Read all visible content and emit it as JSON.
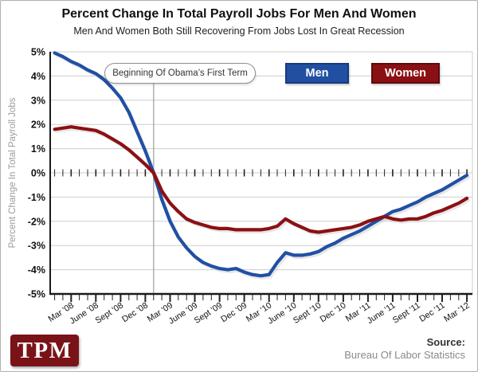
{
  "header": {
    "title": "Percent Change In Total Payroll Jobs For Men And Women",
    "subtitle": "Men And Women Both Still Recovering From Jobs Lost In Great Recession"
  },
  "annotation": {
    "label": "Beginning Of Obama’s First Term"
  },
  "legend": {
    "men": {
      "label": "Men",
      "fill": "#2150a3",
      "border": "#17397d"
    },
    "women": {
      "label": "Women",
      "fill": "#8b1014",
      "border": "#5c0b0e"
    }
  },
  "chart_data": {
    "type": "line",
    "title": "Percent Change In Total Payroll Jobs For Men And Women",
    "subtitle": "Men And Women Both Still Recovering From Jobs Lost In Great Recession",
    "ylabel": "Percent Change In Total Payroll Jobs",
    "ylim": [
      -5,
      5
    ],
    "grid": true,
    "y_tick_labels": [
      "5%",
      "4%",
      "3%",
      "2%",
      "1%",
      "0%",
      "-1%",
      "-2%",
      "-3%",
      "-4%",
      "-5%"
    ],
    "x_start": "Jan 2008",
    "x_end": "Mar 2012",
    "x_interval": "monthly",
    "x_tick_labels": [
      "Mar '08",
      "June '08",
      "Sept '08",
      "Dec '08",
      "Mar '09",
      "June '09",
      "Sept '09",
      "Dec '09",
      "Mar '10",
      "June '10",
      "Sept '10",
      "Dec '10",
      "Mar '11",
      "June '11",
      "Sept '11",
      "Dec '11",
      "Mar '12"
    ],
    "annotation": {
      "text": "Beginning Of Obama’s First Term",
      "x": "Jan 2009"
    },
    "legend_position": "top",
    "series": [
      {
        "name": "Men",
        "color": "#2150a3",
        "values": [
          4.95,
          4.8,
          4.6,
          4.45,
          4.25,
          4.1,
          3.85,
          3.5,
          3.1,
          2.5,
          1.7,
          0.9,
          0,
          -1.1,
          -2,
          -2.65,
          -3.1,
          -3.45,
          -3.7,
          -3.85,
          -3.95,
          -4,
          -3.95,
          -4.1,
          -4.2,
          -4.25,
          -4.2,
          -3.7,
          -3.3,
          -3.4,
          -3.4,
          -3.35,
          -3.25,
          -3.05,
          -2.9,
          -2.7,
          -2.55,
          -2.4,
          -2.2,
          -2,
          -1.8,
          -1.6,
          -1.5,
          -1.35,
          -1.2,
          -1,
          -0.85,
          -0.7,
          -0.5,
          -0.3,
          -0.1
        ]
      },
      {
        "name": "Women",
        "color": "#8b1014",
        "values": [
          1.8,
          1.85,
          1.9,
          1.85,
          1.8,
          1.75,
          1.6,
          1.4,
          1.2,
          0.95,
          0.65,
          0.35,
          0,
          -0.75,
          -1.25,
          -1.6,
          -1.9,
          -2.05,
          -2.15,
          -2.25,
          -2.3,
          -2.3,
          -2.35,
          -2.35,
          -2.35,
          -2.35,
          -2.3,
          -2.2,
          -1.9,
          -2.1,
          -2.25,
          -2.4,
          -2.45,
          -2.4,
          -2.35,
          -2.3,
          -2.25,
          -2.15,
          -2,
          -1.9,
          -1.8,
          -1.9,
          -1.95,
          -1.9,
          -1.9,
          -1.8,
          -1.65,
          -1.55,
          -1.4,
          -1.25,
          -1.05
        ]
      }
    ]
  },
  "footer": {
    "logo": "TPM",
    "logo_color": "#7a1318",
    "source_label": "Source:",
    "source_name": "Bureau Of Labor Statistics"
  }
}
